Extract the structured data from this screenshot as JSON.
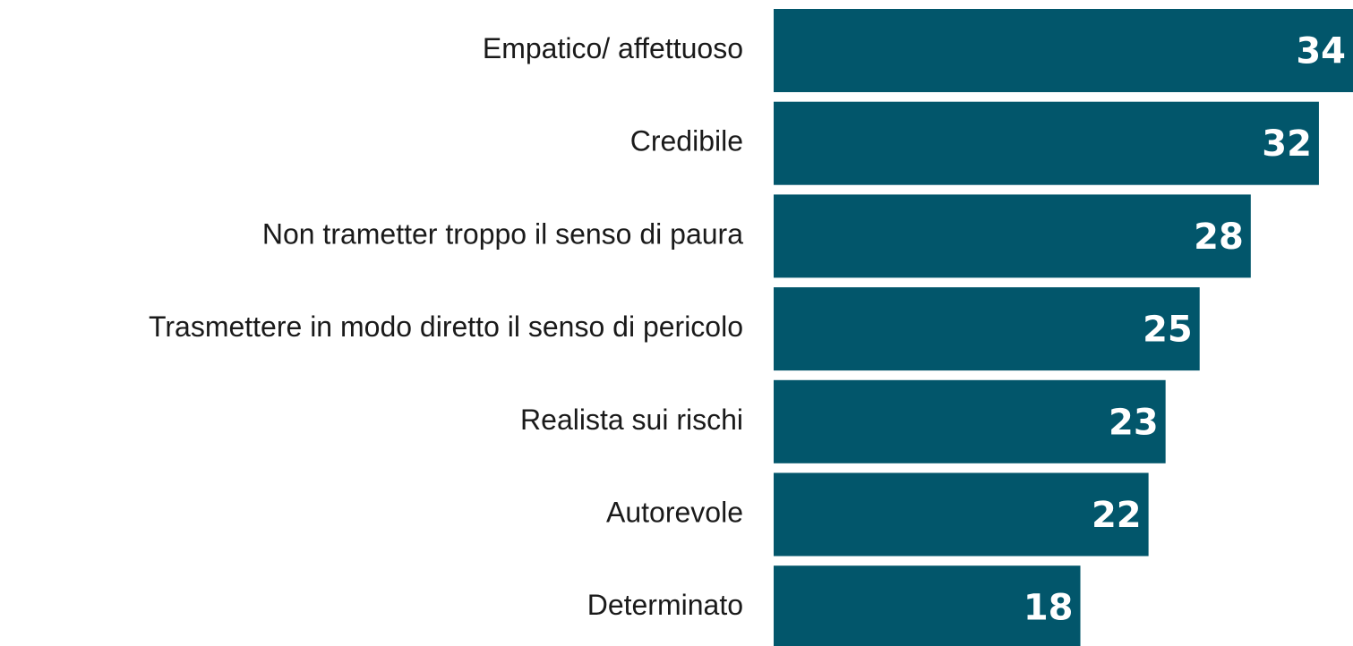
{
  "chart_data": {
    "type": "bar",
    "orientation": "horizontal",
    "categories": [
      "Empatico/ affettuoso",
      "Credibile",
      "Non trametter troppo il senso di paura",
      "Trasmettere in modo diretto il senso di pericolo",
      "Realista sui rischi",
      "Autorevole",
      "Determinato"
    ],
    "values": [
      34,
      32,
      28,
      25,
      23,
      22,
      18
    ],
    "color": "#02566b",
    "xlim": [
      0,
      34
    ]
  }
}
